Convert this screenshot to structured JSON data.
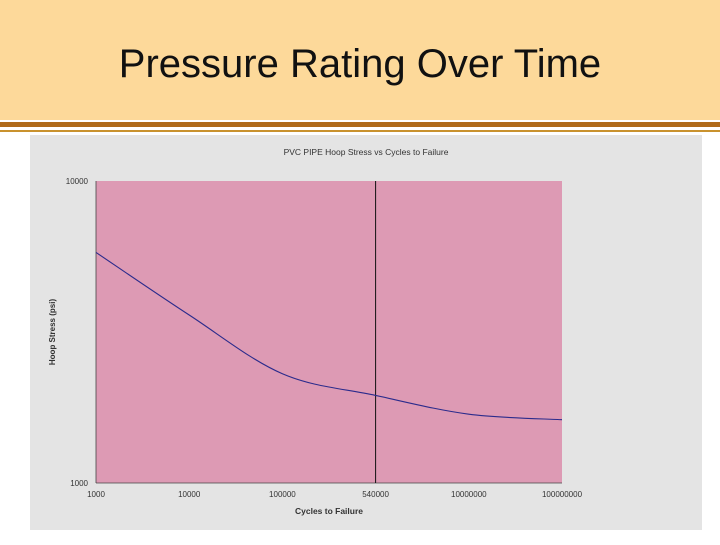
{
  "slide": {
    "title": "Pressure Rating Over Time"
  },
  "colors": {
    "header_bg": "#fdd99a",
    "rule_dark": "#b06a1a",
    "rule_light": "#c9922e",
    "chart_panel_bg": "#e4e4e4",
    "plot_bg": "#dd9ab4",
    "curve": "#2b2b8c",
    "marker_line": "#111111"
  },
  "chart_data": {
    "type": "line",
    "title": "PVC PIPE  Hoop Stress vs Cycles to Failure",
    "xlabel": "Cycles to Failure",
    "ylabel": "Hoop Stress (psi)",
    "x_scale": "log",
    "y_scale": "log",
    "xlim": [
      1000,
      100000000
    ],
    "ylim": [
      1000,
      10000
    ],
    "x_ticks": [
      1000,
      10000,
      100000,
      540000,
      10000000,
      100000000
    ],
    "x_tick_labels": [
      "1000",
      "10000",
      "100000",
      "540000",
      "10000000",
      "100000000"
    ],
    "y_tick_labels": [
      "10000",
      "1000"
    ],
    "grid": false,
    "reference_line": {
      "x": 540000,
      "orientation": "vertical"
    },
    "series": [
      {
        "x": [
          1000,
          10000,
          100000,
          540000,
          10000000,
          100000000
        ],
        "y": [
          5800,
          3600,
          2300,
          1950,
          1690,
          1620
        ]
      }
    ]
  }
}
